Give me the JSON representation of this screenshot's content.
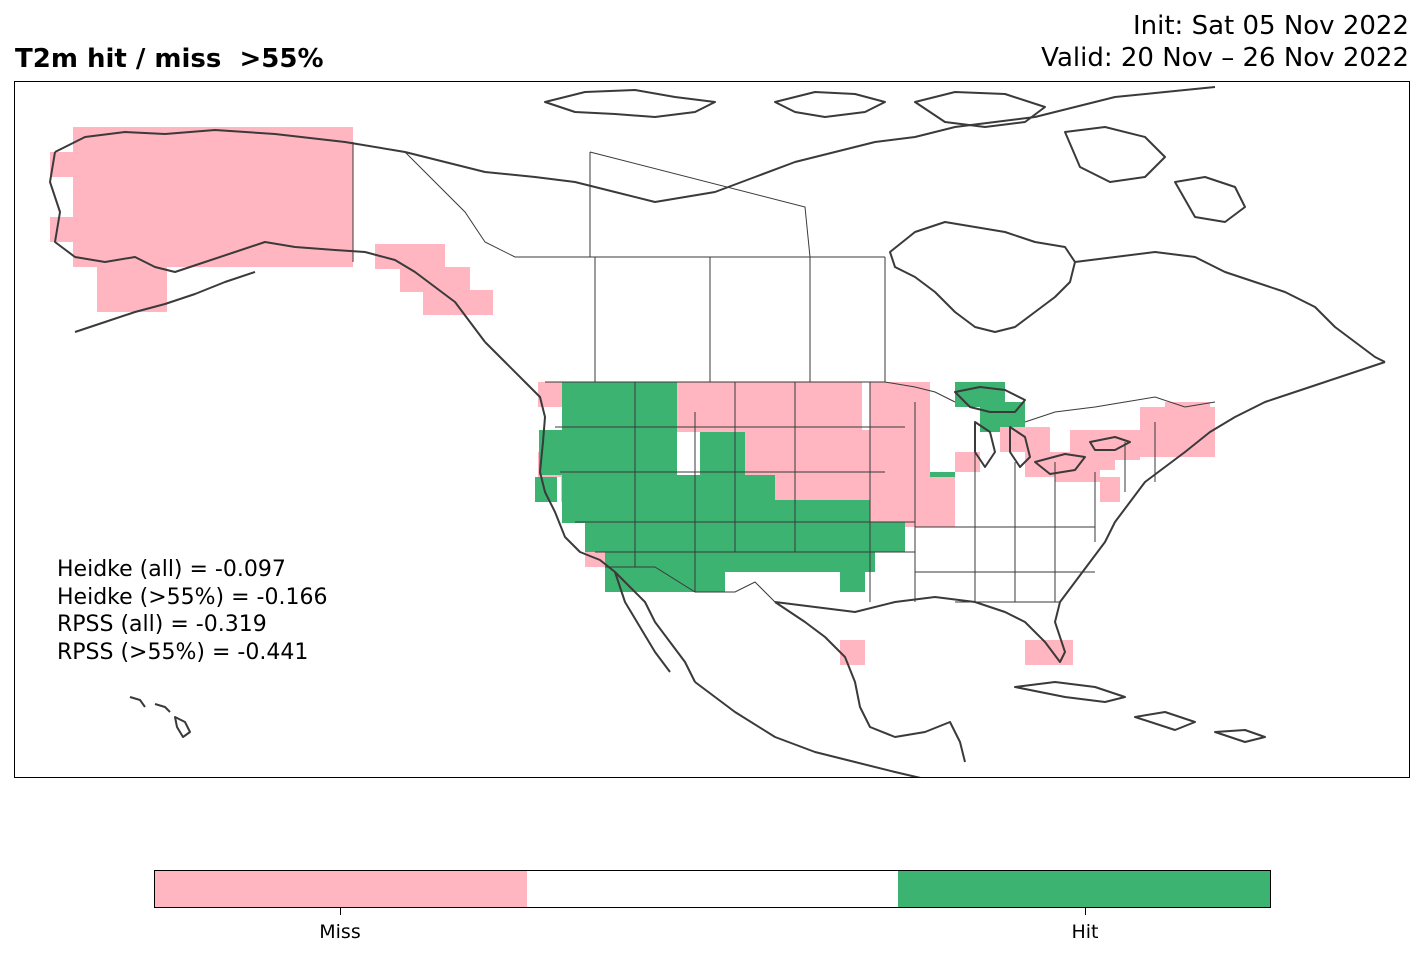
{
  "title": "T2m hit / miss  >55%",
  "init_text": "Init: Sat 05 Nov 2022",
  "valid_text": "Valid: 20 Nov – 26 Nov 2022",
  "stats": [
    "Heidke (all) = -0.097",
    "Heidke (>55%) = -0.166",
    "RPSS (all) = -0.319",
    "RPSS (>55%) = -0.441"
  ],
  "colors": {
    "miss": "#ffb6c1",
    "neutral": "#ffffff",
    "hit": "#3cb371",
    "outline": "#3a3a3a"
  },
  "colorbar": {
    "labels": [
      "Miss",
      "Hit"
    ]
  }
}
